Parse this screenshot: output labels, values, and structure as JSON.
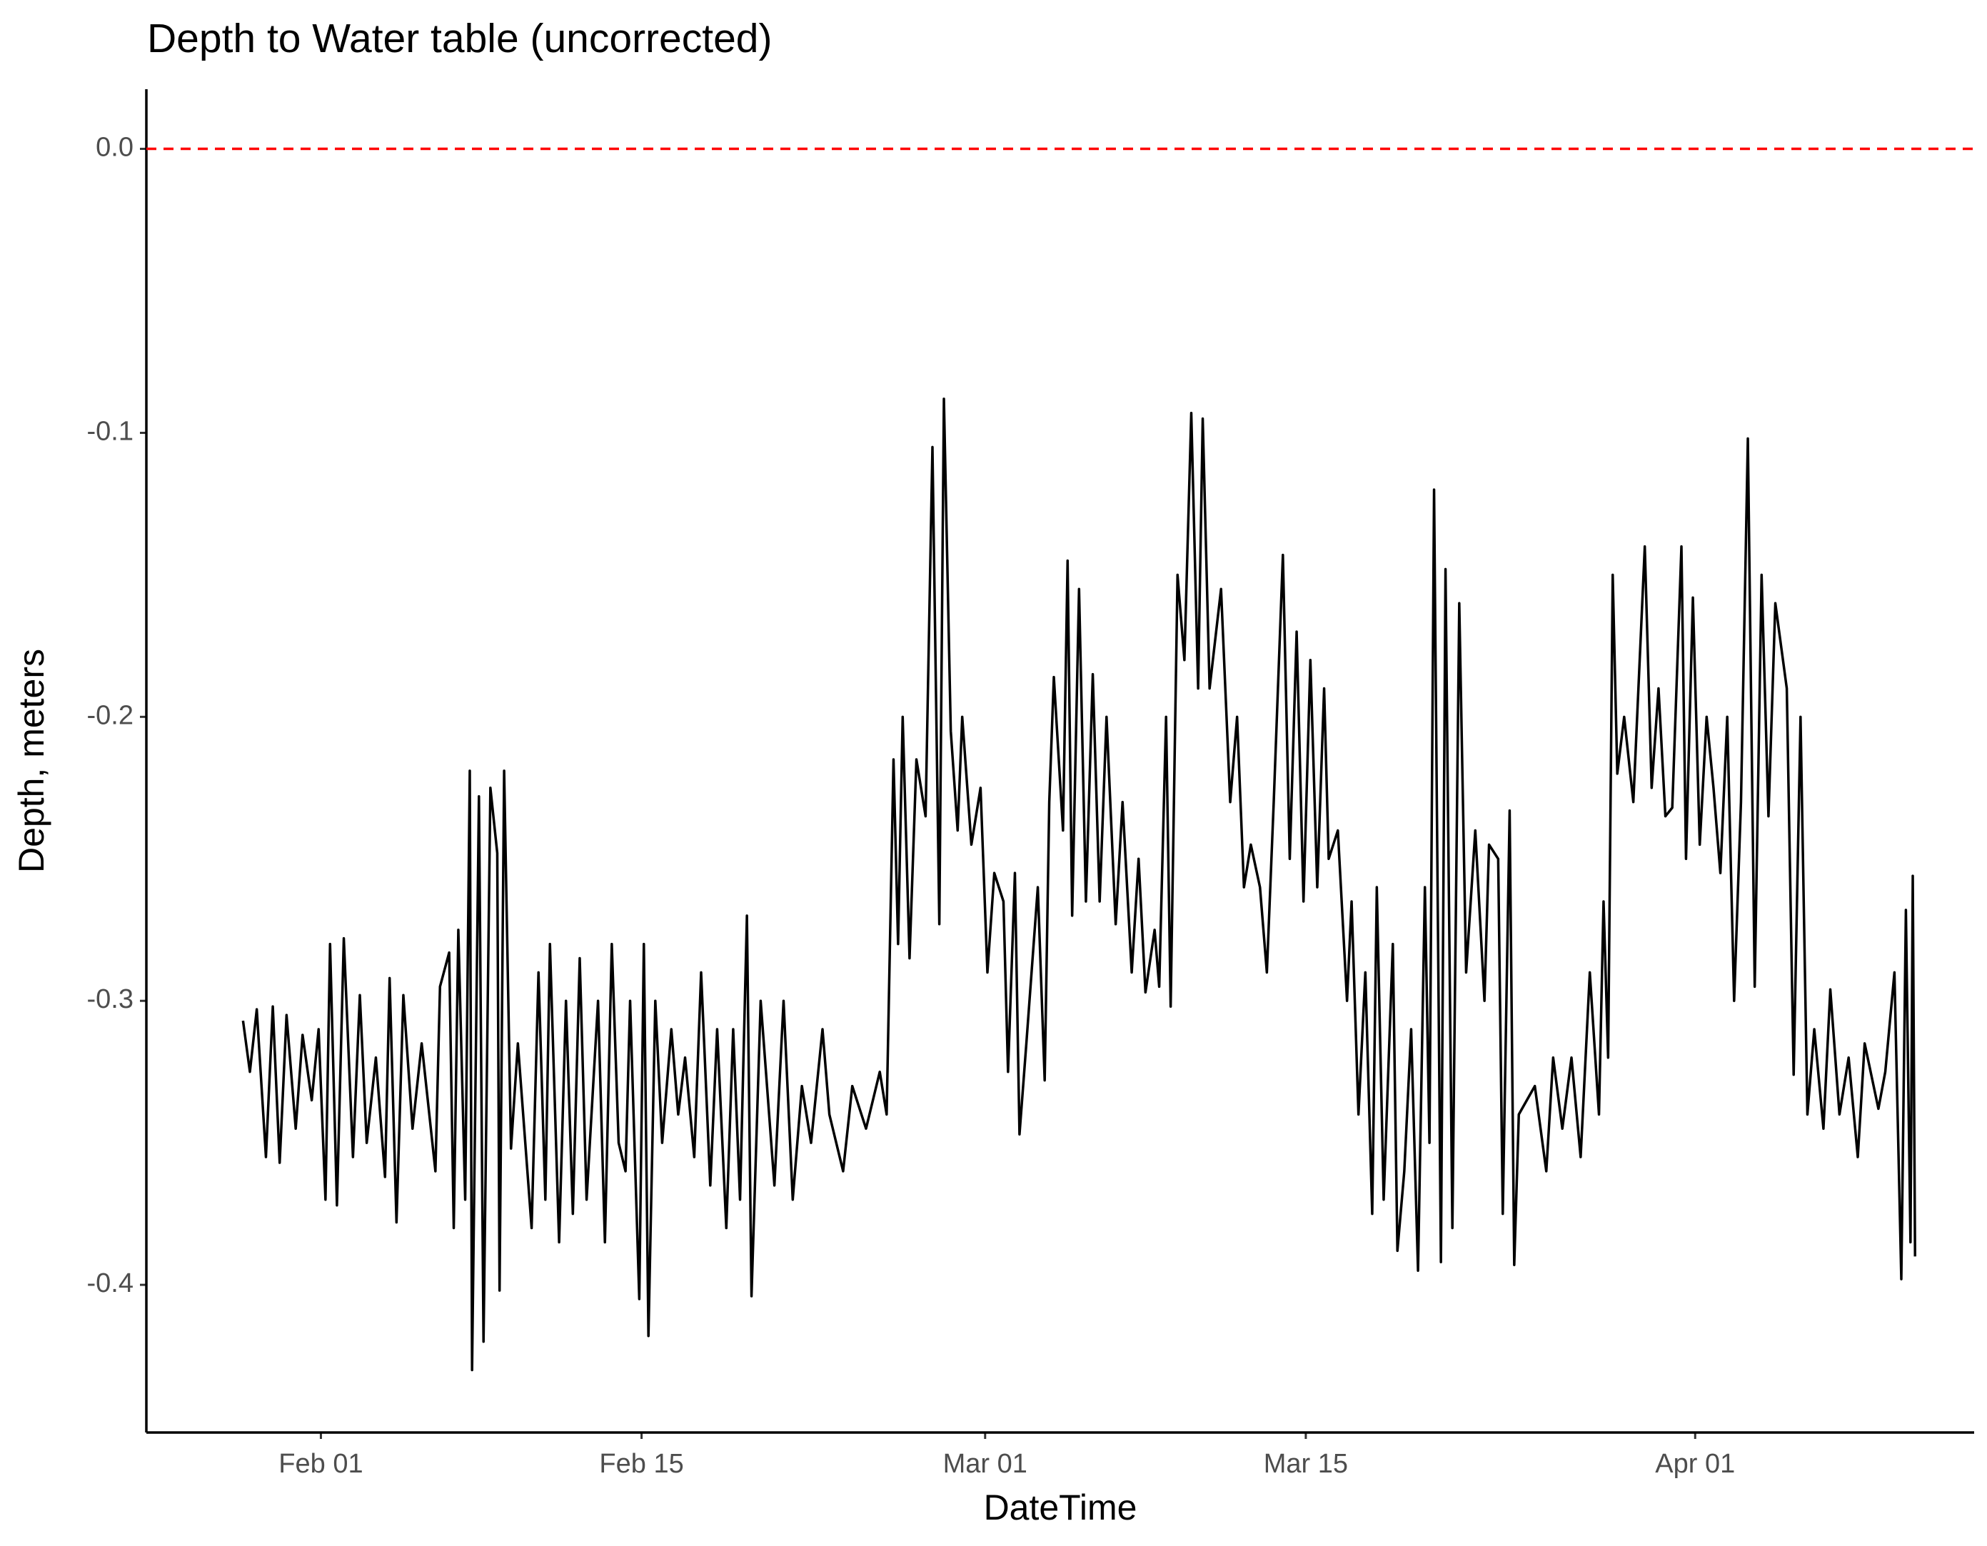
{
  "chart_data": {
    "type": "line",
    "title": "Depth to Water table (uncorrected)",
    "x_label": "DateTime",
    "y_label": "Depth, meters",
    "color": "#000000",
    "hline": 0,
    "hline_color": "#ff0000",
    "xlim": [
      24.38,
      104.18
    ],
    "xticks": [
      {
        "value": 32,
        "label": "Feb 01"
      },
      {
        "value": 46,
        "label": "Feb 15"
      },
      {
        "value": 61,
        "label": "Mar 01"
      },
      {
        "value": 75,
        "label": "Mar 15"
      },
      {
        "value": 92,
        "label": "Apr 01"
      }
    ],
    "ylim": [
      -0.452,
      0.021
    ],
    "yticks": [
      {
        "value": 0,
        "label": "0.0"
      },
      -0.1,
      -0.2,
      -0.3,
      -0.4
    ],
    "grid": false,
    "x": [
      28.6,
      28.9,
      29.2,
      29.6,
      29.9,
      30.2,
      30.5,
      30.9,
      31.2,
      31.6,
      31.9,
      32.2,
      32.4,
      32.7,
      33.0,
      33.4,
      33.7,
      34.0,
      34.4,
      34.8,
      35.0,
      35.3,
      35.6,
      36.0,
      36.4,
      37.0,
      37.2,
      37.6,
      37.8,
      38.0,
      38.3,
      38.5,
      38.6,
      38.9,
      39.1,
      39.4,
      39.7,
      39.8,
      40.0,
      40.3,
      40.6,
      41.2,
      41.5,
      41.8,
      42.0,
      42.4,
      42.7,
      43.0,
      43.3,
      43.6,
      44.1,
      44.4,
      44.7,
      45.0,
      45.3,
      45.5,
      45.9,
      46.1,
      46.3,
      46.6,
      46.9,
      47.3,
      47.6,
      47.9,
      48.3,
      48.6,
      49.0,
      49.3,
      49.7,
      50.0,
      50.3,
      50.6,
      50.8,
      51.2,
      51.8,
      52.2,
      52.6,
      53.0,
      53.4,
      53.9,
      54.2,
      54.8,
      55.2,
      55.8,
      56.4,
      56.7,
      57.0,
      57.2,
      57.4,
      57.7,
      58.0,
      58.4,
      58.7,
      59.0,
      59.2,
      59.5,
      59.8,
      60.0,
      60.4,
      60.8,
      61.1,
      61.4,
      61.8,
      62.0,
      62.3,
      62.5,
      62.8,
      63.3,
      63.6,
      63.8,
      64.0,
      64.4,
      64.6,
      64.8,
      65.1,
      65.4,
      65.7,
      66.0,
      66.3,
      66.7,
      67.0,
      67.4,
      67.7,
      68.0,
      68.4,
      68.6,
      68.9,
      69.1,
      69.4,
      69.7,
      70.0,
      70.3,
      70.5,
      70.8,
      71.3,
      71.7,
      72.0,
      72.3,
      72.6,
      73.0,
      73.3,
      73.6,
      74.0,
      74.3,
      74.6,
      74.9,
      75.2,
      75.5,
      75.8,
      76.0,
      76.4,
      76.8,
      77.0,
      77.3,
      77.6,
      77.9,
      78.1,
      78.4,
      78.8,
      79.0,
      79.3,
      79.6,
      79.9,
      80.2,
      80.4,
      80.6,
      80.9,
      81.1,
      81.4,
      81.7,
      82.0,
      82.4,
      82.8,
      83.0,
      83.4,
      83.6,
      83.9,
      84.1,
      84.3,
      85.0,
      85.5,
      85.8,
      86.2,
      86.6,
      87.0,
      87.4,
      87.8,
      88.0,
      88.2,
      88.4,
      88.6,
      88.9,
      89.3,
      89.8,
      90.1,
      90.4,
      90.7,
      91.0,
      91.4,
      91.6,
      91.9,
      92.2,
      92.5,
      92.8,
      93.1,
      93.4,
      93.7,
      94.0,
      94.3,
      94.6,
      94.9,
      95.2,
      95.5,
      96.0,
      96.3,
      96.6,
      96.9,
      97.2,
      97.6,
      97.9,
      98.3,
      98.7,
      99.1,
      99.4,
      100.0,
      100.3,
      100.7,
      101.0,
      101.2,
      101.4,
      101.5,
      101.6
    ],
    "values": [
      -0.307,
      -0.325,
      -0.303,
      -0.355,
      -0.302,
      -0.357,
      -0.305,
      -0.345,
      -0.312,
      -0.335,
      -0.31,
      -0.37,
      -0.28,
      -0.372,
      -0.278,
      -0.355,
      -0.298,
      -0.35,
      -0.32,
      -0.362,
      -0.292,
      -0.378,
      -0.298,
      -0.345,
      -0.315,
      -0.36,
      -0.295,
      -0.283,
      -0.38,
      -0.275,
      -0.37,
      -0.219,
      -0.43,
      -0.228,
      -0.42,
      -0.225,
      -0.248,
      -0.402,
      -0.219,
      -0.352,
      -0.315,
      -0.38,
      -0.29,
      -0.37,
      -0.28,
      -0.385,
      -0.3,
      -0.375,
      -0.285,
      -0.37,
      -0.3,
      -0.385,
      -0.28,
      -0.35,
      -0.36,
      -0.3,
      -0.405,
      -0.28,
      -0.418,
      -0.3,
      -0.35,
      -0.31,
      -0.34,
      -0.32,
      -0.355,
      -0.29,
      -0.365,
      -0.31,
      -0.38,
      -0.31,
      -0.37,
      -0.27,
      -0.404,
      -0.3,
      -0.365,
      -0.3,
      -0.37,
      -0.33,
      -0.35,
      -0.31,
      -0.34,
      -0.36,
      -0.33,
      -0.345,
      -0.325,
      -0.34,
      -0.215,
      -0.28,
      -0.2,
      -0.285,
      -0.215,
      -0.235,
      -0.105,
      -0.273,
      -0.088,
      -0.205,
      -0.24,
      -0.2,
      -0.245,
      -0.225,
      -0.29,
      -0.255,
      -0.265,
      -0.325,
      -0.255,
      -0.347,
      -0.315,
      -0.26,
      -0.328,
      -0.23,
      -0.186,
      -0.24,
      -0.145,
      -0.27,
      -0.155,
      -0.265,
      -0.185,
      -0.265,
      -0.2,
      -0.273,
      -0.23,
      -0.29,
      -0.25,
      -0.297,
      -0.275,
      -0.295,
      -0.2,
      -0.302,
      -0.15,
      -0.18,
      -0.093,
      -0.19,
      -0.095,
      -0.19,
      -0.155,
      -0.23,
      -0.2,
      -0.26,
      -0.245,
      -0.26,
      -0.29,
      -0.23,
      -0.143,
      -0.25,
      -0.17,
      -0.265,
      -0.18,
      -0.26,
      -0.19,
      -0.25,
      -0.24,
      -0.3,
      -0.265,
      -0.34,
      -0.29,
      -0.375,
      -0.26,
      -0.37,
      -0.28,
      -0.388,
      -0.36,
      -0.31,
      -0.395,
      -0.26,
      -0.35,
      -0.12,
      -0.392,
      -0.148,
      -0.38,
      -0.16,
      -0.29,
      -0.24,
      -0.3,
      -0.245,
      -0.25,
      -0.375,
      -0.233,
      -0.393,
      -0.34,
      -0.33,
      -0.36,
      -0.32,
      -0.345,
      -0.32,
      -0.355,
      -0.29,
      -0.34,
      -0.265,
      -0.32,
      -0.15,
      -0.22,
      -0.2,
      -0.23,
      -0.14,
      -0.225,
      -0.19,
      -0.235,
      -0.232,
      -0.14,
      -0.25,
      -0.158,
      -0.245,
      -0.2,
      -0.225,
      -0.255,
      -0.2,
      -0.3,
      -0.23,
      -0.102,
      -0.295,
      -0.15,
      -0.235,
      -0.16,
      -0.19,
      -0.326,
      -0.2,
      -0.34,
      -0.31,
      -0.345,
      -0.296,
      -0.34,
      -0.32,
      -0.355,
      -0.315,
      -0.338,
      -0.325,
      -0.29,
      -0.398,
      -0.268,
      -0.385,
      -0.256,
      -0.39
    ]
  }
}
